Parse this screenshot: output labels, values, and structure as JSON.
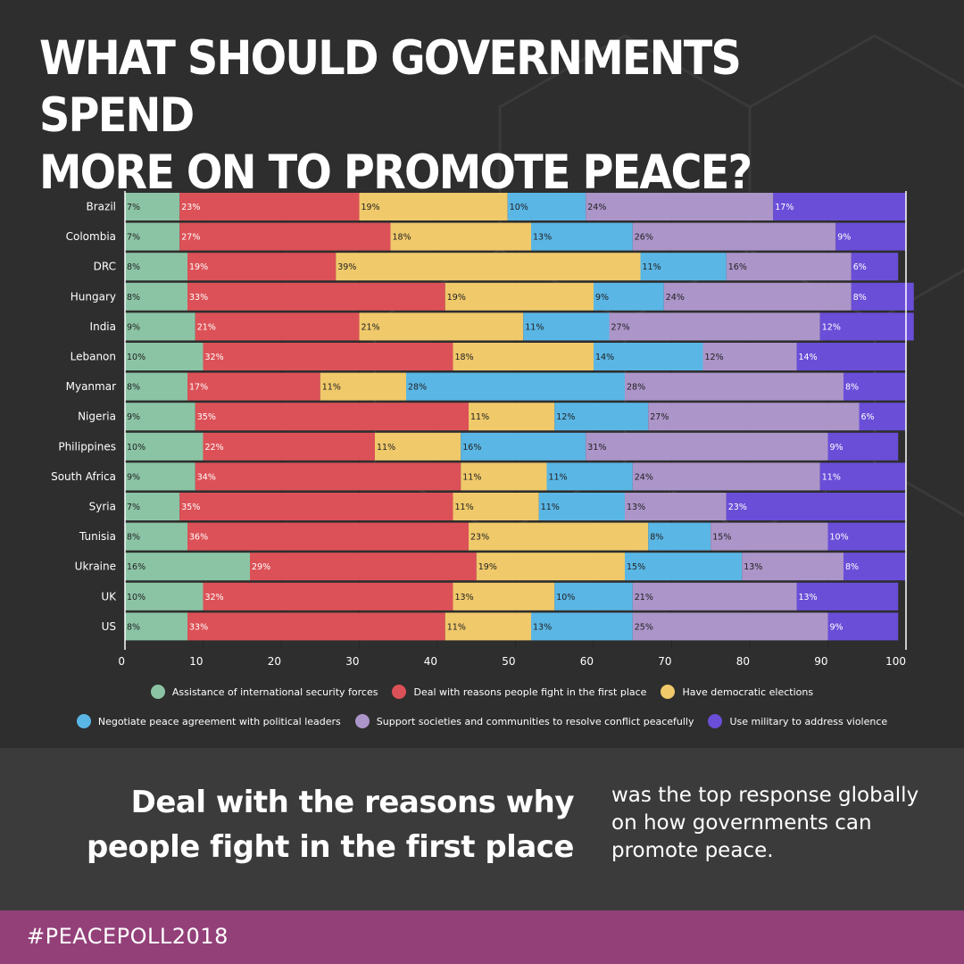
{
  "title": "WHAT SHOULD GOVERNMENTS SPEND\nMORE ON TO PROMOTE PEACE?",
  "chart_data": {
    "type": "bar",
    "orientation": "horizontal",
    "stacked": true,
    "title": "WHAT SHOULD GOVERNMENTS SPEND MORE ON TO PROMOTE PEACE?",
    "xlabel": "",
    "ylabel": "",
    "xlim": [
      0,
      100
    ],
    "xticks": [
      0,
      10,
      20,
      30,
      40,
      50,
      60,
      70,
      80,
      90,
      100
    ],
    "grid": true,
    "legend_position": "bottom",
    "categories": [
      "Brazil",
      "Colombia",
      "DRC",
      "Hungary",
      "India",
      "Lebanon",
      "Myanmar",
      "Nigeria",
      "Philippines",
      "South Africa",
      "Syria",
      "Tunisia",
      "Ukraine",
      "UK",
      "US"
    ],
    "series": [
      {
        "name": "Assistance of international security forces",
        "color": "#8bc4a5",
        "label_color": "#1f1f1f",
        "values": [
          7,
          7,
          8,
          8,
          9,
          10,
          8,
          9,
          10,
          9,
          7,
          8,
          16,
          10,
          8
        ]
      },
      {
        "name": "Deal with reasons people fight in the first place",
        "color": "#dc5157",
        "label_color": "#ffffff",
        "values": [
          23,
          27,
          19,
          33,
          21,
          32,
          17,
          35,
          22,
          34,
          35,
          36,
          29,
          32,
          33
        ]
      },
      {
        "name": "Have democratic elections",
        "color": "#f0c96b",
        "label_color": "#1f1f1f",
        "values": [
          19,
          18,
          39,
          19,
          21,
          18,
          11,
          11,
          11,
          11,
          11,
          23,
          19,
          13,
          11
        ]
      },
      {
        "name": "Negotiate peace agreement with political leaders",
        "color": "#5ab6e5",
        "label_color": "#1f1f1f",
        "values": [
          10,
          13,
          11,
          9,
          11,
          14,
          28,
          12,
          16,
          11,
          11,
          8,
          15,
          10,
          13
        ]
      },
      {
        "name": "Support societies and communities to resolve conflict peacefully",
        "color": "#ac95c9",
        "label_color": "#1f1f1f",
        "values": [
          24,
          26,
          16,
          24,
          27,
          12,
          28,
          27,
          31,
          24,
          13,
          15,
          13,
          21,
          25
        ]
      },
      {
        "name": "Use military to address violence",
        "color": "#6a4ed8",
        "label_color": "#ffffff",
        "values": [
          17,
          9,
          6,
          8,
          12,
          14,
          8,
          6,
          9,
          11,
          23,
          10,
          8,
          13,
          9
        ]
      }
    ]
  },
  "highlight": {
    "main": "Deal with the reasons why people fight in the first place",
    "sub": "was the top response globally on how governments can promote peace."
  },
  "footer": {
    "hashtag": "#PEACEPOLL2018"
  },
  "colors": {
    "background": "#2e2e2e",
    "bottom_panel": "#3b3b3b",
    "footer": "#934079"
  }
}
